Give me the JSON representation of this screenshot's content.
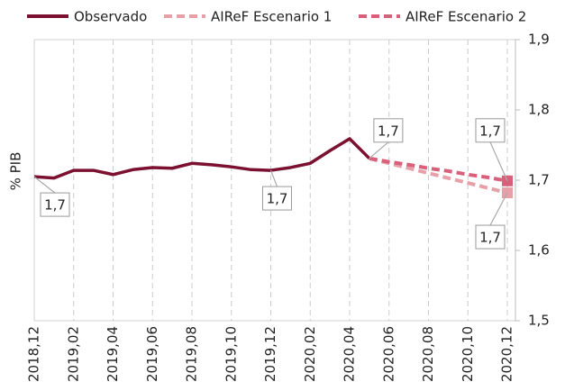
{
  "chart_data": {
    "type": "line",
    "y_label": "% PIB",
    "categories": [
      "2018,12",
      null,
      "2019,02",
      null,
      "2019,04",
      null,
      "2019,06",
      null,
      "2019,08",
      null,
      "2019,10",
      null,
      "2019,12",
      null,
      "2020,02",
      null,
      "2020,04",
      null,
      "2020,06",
      null,
      "2020,08",
      null,
      "2020,10",
      null,
      "2020,12"
    ],
    "series": [
      {
        "name": "Observado",
        "color": "#7b1030",
        "dash": false,
        "values": [
          1.705,
          1.703,
          1.714,
          1.714,
          1.708,
          1.715,
          1.718,
          1.717,
          1.724,
          1.722,
          1.719,
          1.715,
          1.714,
          1.718,
          1.724,
          1.742,
          1.759,
          1.731,
          null,
          null,
          null,
          null,
          null,
          null,
          null
        ],
        "value_labels": [
          "1,7",
          null,
          null,
          null,
          null,
          null,
          null,
          null,
          null,
          null,
          null,
          null,
          "1,7",
          null,
          null,
          null,
          null,
          "1,7",
          null,
          null,
          null,
          null,
          null,
          null,
          null
        ]
      },
      {
        "name": "AIReF Escenario 1",
        "color": "#e8a0a8",
        "dash": true,
        "values": [
          null,
          null,
          null,
          null,
          null,
          null,
          null,
          null,
          null,
          null,
          null,
          null,
          null,
          null,
          null,
          null,
          null,
          1.731,
          1.724,
          1.717,
          1.71,
          1.703,
          1.696,
          1.689,
          1.682
        ],
        "value_labels": [
          null,
          null,
          null,
          null,
          null,
          null,
          null,
          null,
          null,
          null,
          null,
          null,
          null,
          null,
          null,
          null,
          null,
          null,
          null,
          null,
          null,
          null,
          null,
          null,
          "1,7"
        ]
      },
      {
        "name": "AIReF Escenario 2",
        "color": "#d9607a",
        "dash": true,
        "values": [
          null,
          null,
          null,
          null,
          null,
          null,
          null,
          null,
          null,
          null,
          null,
          null,
          null,
          null,
          null,
          null,
          null,
          1.731,
          1.726,
          1.722,
          1.717,
          1.713,
          1.708,
          1.704,
          1.699
        ],
        "value_labels": [
          null,
          null,
          null,
          null,
          null,
          null,
          null,
          null,
          null,
          null,
          null,
          null,
          null,
          null,
          null,
          null,
          null,
          null,
          null,
          null,
          null,
          null,
          null,
          null,
          "1,7"
        ]
      }
    ],
    "ylim": [
      1.5,
      1.9
    ],
    "yticks": [
      {
        "value": 1.5,
        "label": "1,5"
      },
      {
        "value": 1.6,
        "label": "1,6"
      },
      {
        "value": 1.7,
        "label": "1,7"
      },
      {
        "value": 1.8,
        "label": "1,8"
      },
      {
        "value": 1.9,
        "label": "1,9"
      }
    ],
    "y_axis_side": "right",
    "legend": "top"
  }
}
